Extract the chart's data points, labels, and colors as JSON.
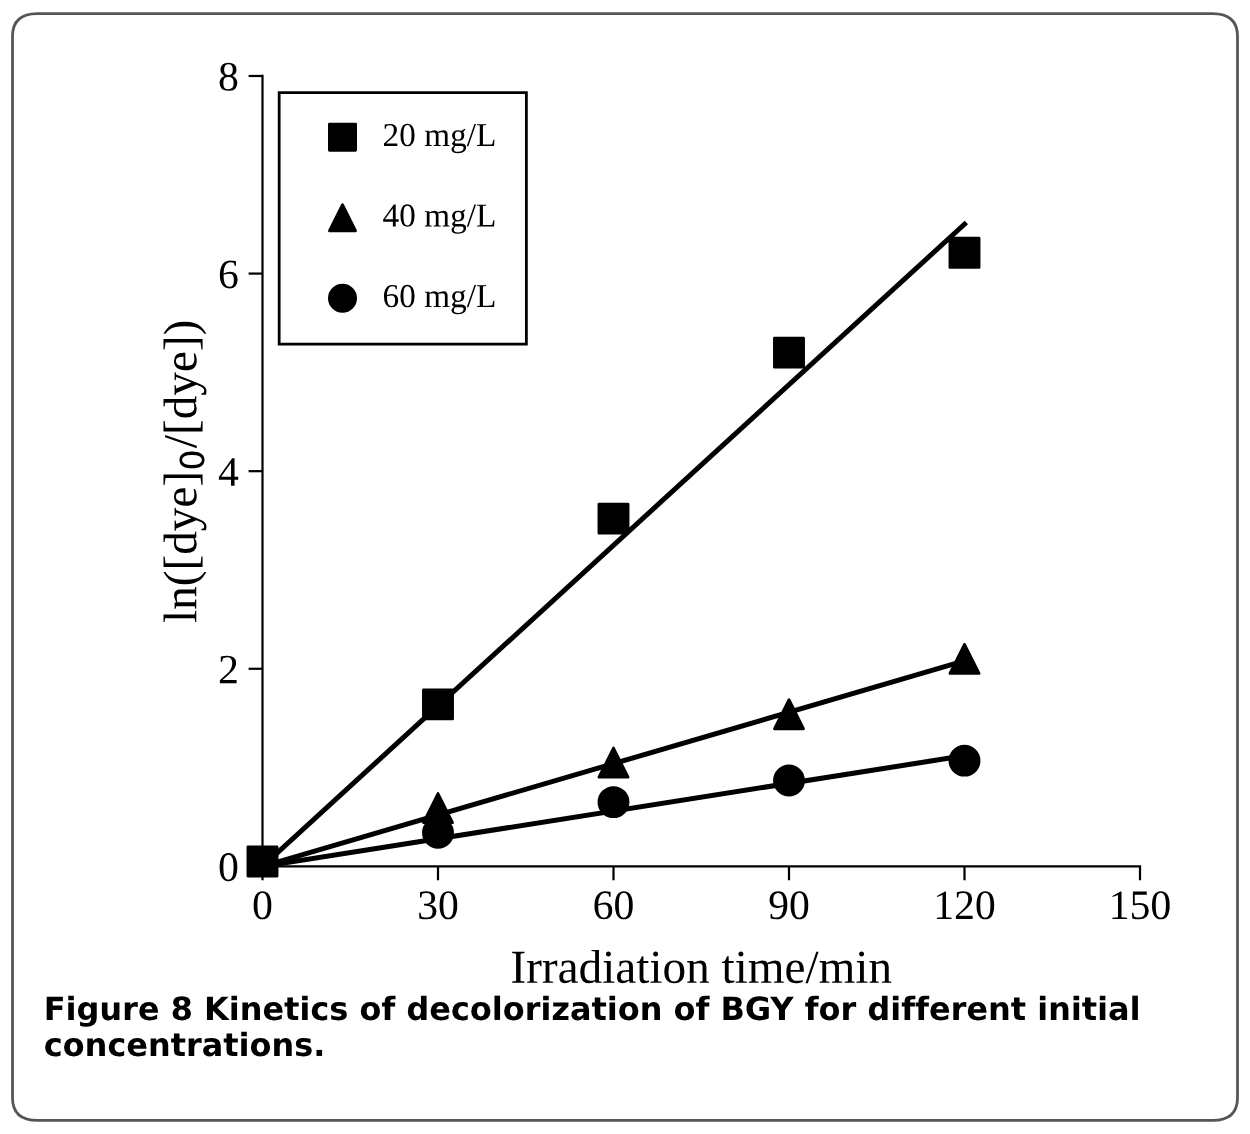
{
  "chart_data": {
    "type": "scatter",
    "xlabel": "Irradiation time/min",
    "ylabel": "ln([dye]$_{0}$/[dye])",
    "annotations": [
      "Figure 8 Kinetics of decolorization of BGY for different initial concentrations."
    ],
    "xlim": [
      0,
      150
    ],
    "xticks": [
      0,
      30,
      60,
      90,
      120,
      150
    ],
    "ylim": [
      0,
      8
    ],
    "yticks": [
      0,
      2,
      4,
      6,
      8
    ],
    "grid": false,
    "legend": "top left",
    "series": [
      {
        "name": "20 mg/L",
        "marker": "square",
        "color": "#000000",
        "x": [
          0,
          30,
          60,
          90,
          120
        ],
        "values": [
          0.05,
          1.64,
          3.52,
          5.2,
          6.21
        ]
      },
      {
        "name": "40 mg/L",
        "marker": "triangle",
        "color": "#000000",
        "x": [
          30,
          60,
          90,
          120
        ],
        "values": [
          0.59,
          1.05,
          1.54,
          2.1
        ]
      },
      {
        "name": "60 mg/L",
        "marker": "circle",
        "color": "#000000",
        "x": [
          30,
          60,
          90,
          120
        ],
        "values": [
          0.34,
          0.65,
          0.87,
          1.07
        ]
      },
      {
        "type": "line",
        "color": "#000000",
        "line_style": "solid",
        "x": [
          0,
          120
        ],
        "values": [
          0,
          6.5
        ]
      },
      {
        "type": "line",
        "color": "#000000",
        "line_style": "solid",
        "x": [
          0,
          120
        ],
        "values": [
          0,
          2.08
        ]
      },
      {
        "type": "line",
        "color": "#000000",
        "line_style": "solid",
        "x": [
          0,
          120
        ],
        "values": [
          0,
          1.12
        ]
      }
    ]
  }
}
